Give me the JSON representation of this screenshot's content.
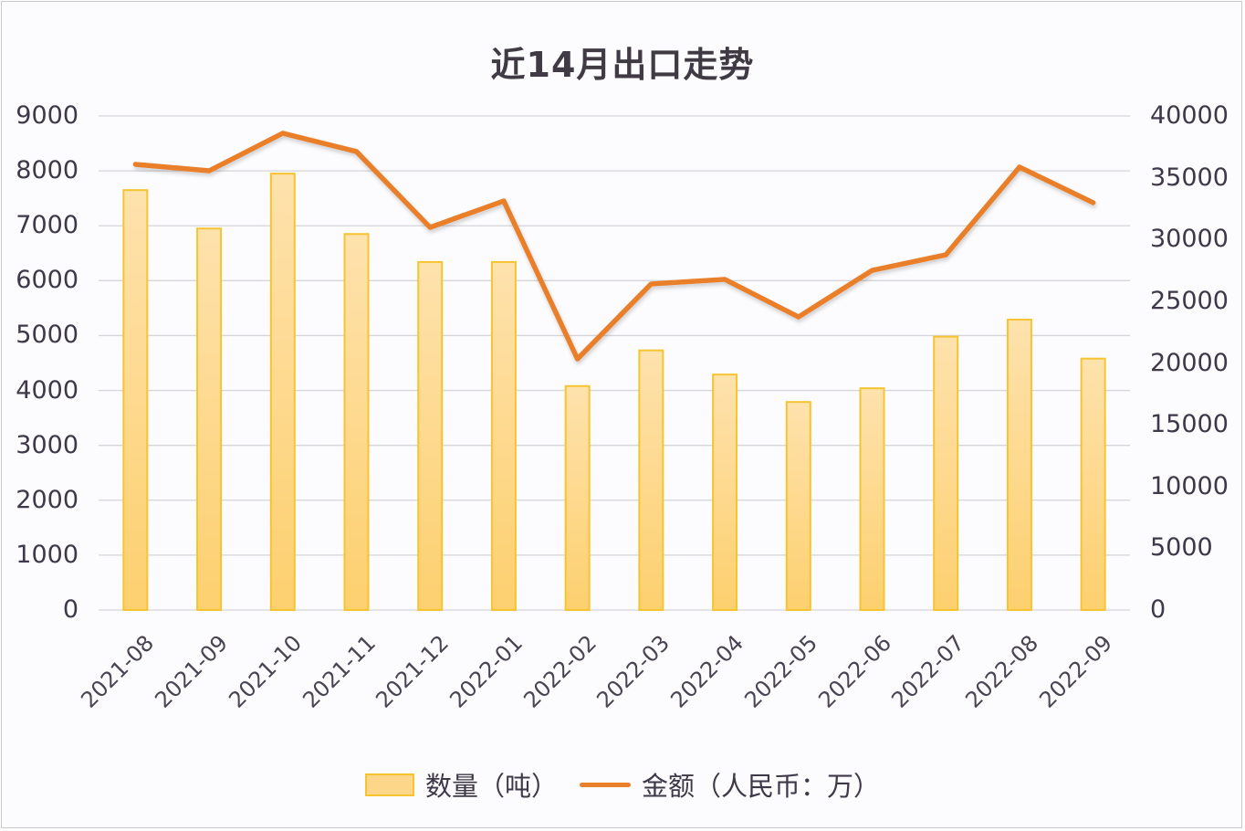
{
  "title": "近14月出口走势",
  "legend": {
    "bar_label": "数量（吨）",
    "line_label": "金额（人民币：万）"
  },
  "colors": {
    "bar_fill": "#fdd68a",
    "bar_border": "#f7c431",
    "line": "#ea7f2c",
    "grid": "#d5d5da",
    "text": "#3e3848"
  },
  "axes": {
    "left_ticks": [
      "9000",
      "8000",
      "7000",
      "6000",
      "5000",
      "4000",
      "3000",
      "2000",
      "1000",
      "0"
    ],
    "right_ticks": [
      "40000",
      "35000",
      "30000",
      "25000",
      "20000",
      "15000",
      "10000",
      "5000",
      "0"
    ]
  },
  "chart_data": {
    "type": "bar",
    "title": "近14月出口走势",
    "categories": [
      "2021-08",
      "2021-09",
      "2021-10",
      "2021-11",
      "2021-12",
      "2022-01",
      "2022-02",
      "2022-03",
      "2022-04",
      "2022-05",
      "2022-06",
      "2022-07",
      "2022-08",
      "2022-09"
    ],
    "series": [
      {
        "name": "数量（吨）",
        "type": "bar",
        "axis": "left",
        "values": [
          7650,
          6950,
          7950,
          6850,
          6340,
          6340,
          4080,
          4730,
          4290,
          3790,
          4040,
          4980,
          5290,
          4580
        ]
      },
      {
        "name": "金额（人民币：万）",
        "type": "line",
        "axis": "right",
        "values": [
          36080,
          35560,
          38600,
          37120,
          30980,
          33120,
          20330,
          26400,
          26770,
          23730,
          27500,
          28760,
          35860,
          32980
        ]
      }
    ],
    "xlabel": "",
    "ylabel": "数量（吨）",
    "y2label": "金额（人民币：万）",
    "ylim": [
      0,
      9000
    ],
    "y2lim": [
      0,
      40000
    ],
    "grid": true,
    "legend_position": "bottom"
  }
}
